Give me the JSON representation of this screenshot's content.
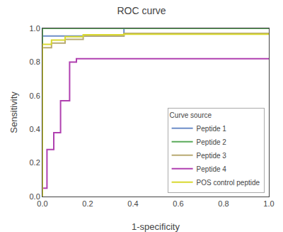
{
  "chart_data": {
    "type": "line",
    "title": "ROC curve",
    "xlabel": "1-specificity",
    "ylabel": "Sensitivity",
    "legend_title": "Curve source",
    "xlim": [
      0.0,
      1.0
    ],
    "ylim": [
      0.0,
      1.0
    ],
    "xticks": [
      {
        "value": 0.0,
        "label": "0.0"
      },
      0.2,
      0.4,
      0.6,
      0.8,
      {
        "value": 1.0,
        "label": "1.0"
      }
    ],
    "yticks": [
      {
        "value": 0.0,
        "label": "0.0"
      },
      0.2,
      0.4,
      0.6,
      0.8,
      {
        "value": 1.0,
        "label": "1.0"
      }
    ],
    "grid": false,
    "legend": "lower right",
    "series": [
      {
        "name": "Peptide 1",
        "color": "#6e8ec8",
        "x": [
          0.0,
          0.0,
          0.36,
          0.36,
          1.0
        ],
        "values": [
          0.0,
          0.955,
          0.955,
          1.0,
          1.0
        ]
      },
      {
        "name": "Peptide 2",
        "color": "#5aaa5a",
        "x": [
          0.0,
          0.0,
          1.0
        ],
        "values": [
          0.0,
          1.0,
          1.0
        ]
      },
      {
        "name": "Peptide 3",
        "color": "#b8aa72",
        "x": [
          0.0,
          0.0,
          0.04,
          0.04,
          0.1,
          0.1,
          0.18,
          0.18,
          0.36,
          0.36,
          1.0
        ],
        "values": [
          0.0,
          0.885,
          0.885,
          0.912,
          0.912,
          0.935,
          0.935,
          0.955,
          0.955,
          0.97,
          0.97
        ]
      },
      {
        "name": "Peptide 4",
        "color": "#b040b0",
        "x": [
          0.0,
          0.0,
          0.02,
          0.02,
          0.05,
          0.05,
          0.08,
          0.08,
          0.12,
          0.12,
          0.15,
          0.15,
          1.0
        ],
        "values": [
          0.0,
          0.05,
          0.05,
          0.28,
          0.28,
          0.38,
          0.38,
          0.57,
          0.57,
          0.8,
          0.8,
          0.82,
          0.82
        ]
      },
      {
        "name": "POS control peptide",
        "color": "#d8d830",
        "x": [
          0.0,
          0.0,
          0.04,
          0.04,
          0.1,
          0.1,
          0.18,
          0.18,
          0.36,
          0.36,
          1.0
        ],
        "values": [
          0.0,
          0.905,
          0.905,
          0.93,
          0.93,
          0.95,
          0.95,
          0.962,
          0.962,
          0.965,
          0.965
        ]
      }
    ]
  }
}
